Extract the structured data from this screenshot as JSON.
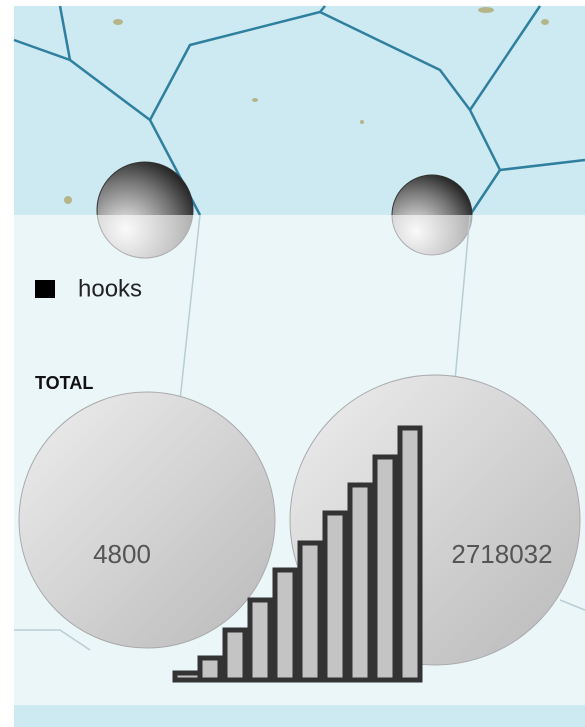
{
  "legend": {
    "label": "hooks"
  },
  "total": {
    "label": "TOTAL",
    "bubbles": [
      {
        "value": "4800"
      },
      {
        "value": "2718032"
      }
    ]
  }
}
